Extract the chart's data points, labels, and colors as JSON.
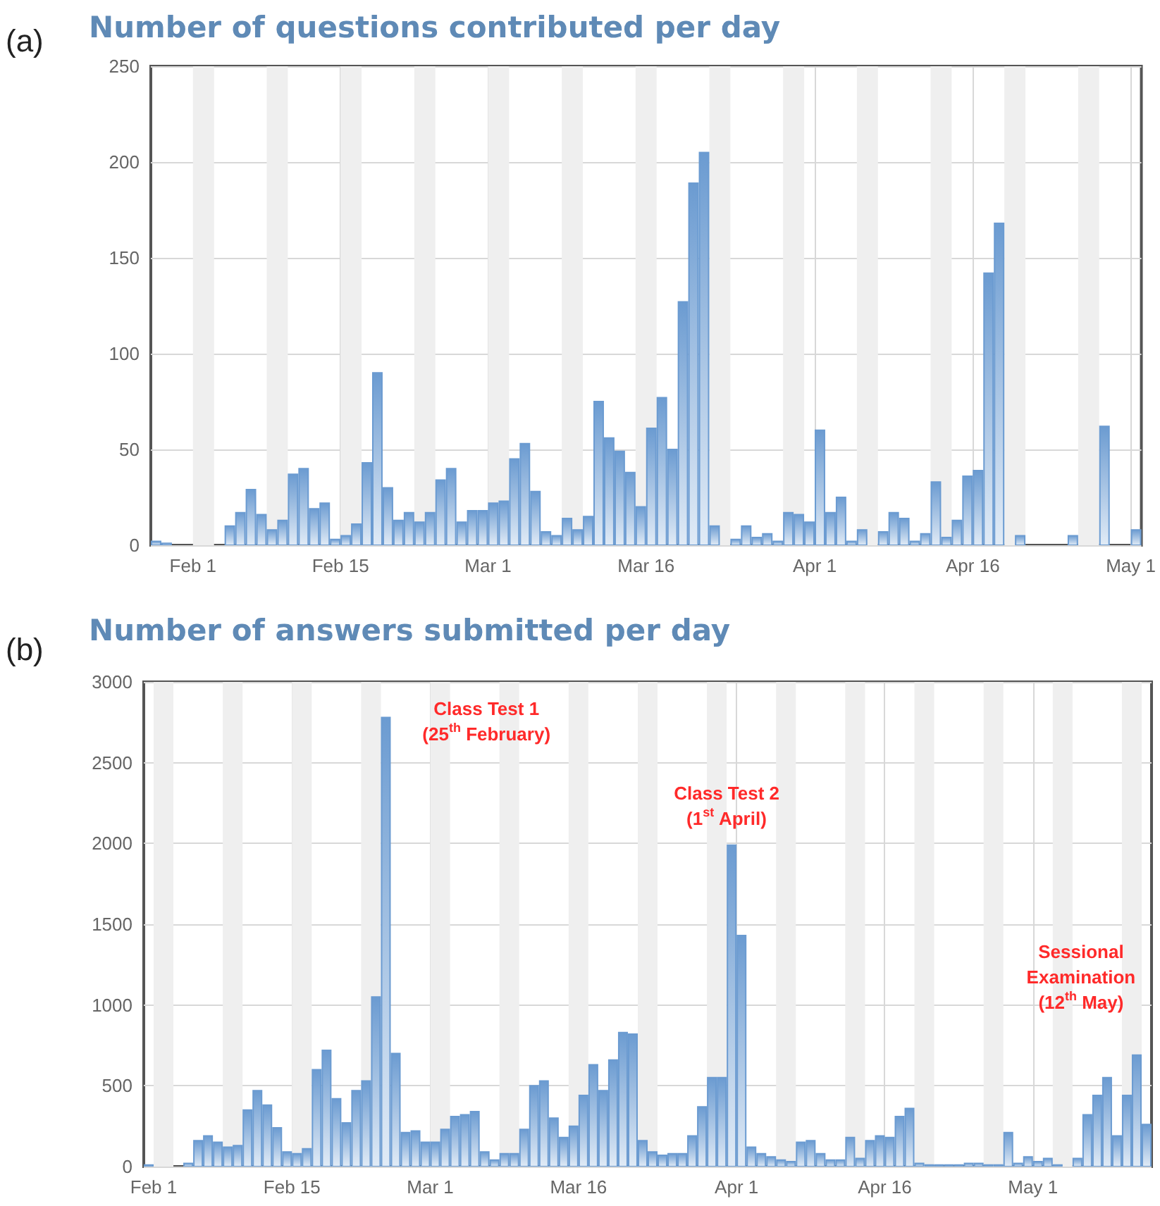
{
  "chart_data": [
    {
      "type": "bar",
      "title": "Number of questions contributed per day",
      "color": "#6b9bd1",
      "x": [
        "--01-28",
        "--01-29",
        "--02-04",
        "--02-05",
        "--02-06",
        "--02-07",
        "--02-08",
        "--02-09",
        "--02-10",
        "--02-11",
        "--02-12",
        "--02-13",
        "--02-14",
        "--02-15",
        "--02-16",
        "--02-17",
        "--02-18",
        "--02-19",
        "--02-20",
        "--02-21",
        "--02-22",
        "--02-23",
        "--02-24",
        "--02-25",
        "--02-26",
        "--02-27",
        "--02-28",
        "--03-01",
        "--03-02",
        "--03-03",
        "--03-04",
        "--03-05",
        "--03-06",
        "--03-07",
        "--03-08",
        "--03-09",
        "--03-10",
        "--03-11",
        "--03-12",
        "--03-13",
        "--03-14",
        "--03-15",
        "--03-16",
        "--03-17",
        "--03-18",
        "--03-19",
        "--03-20",
        "--03-21",
        "--03-22",
        "--03-24",
        "--03-25",
        "--03-26",
        "--03-27",
        "--03-28",
        "--03-29",
        "--03-30",
        "--03-31",
        "--04-01",
        "--04-02",
        "--04-03",
        "--04-04",
        "--04-05",
        "--04-07",
        "--04-08",
        "--04-09",
        "--04-10",
        "--04-11",
        "--04-12",
        "--04-13",
        "--04-14",
        "--04-15",
        "--04-16",
        "--04-17",
        "--04-18",
        "--04-20",
        "--04-25",
        "--04-28",
        "--05-01"
      ],
      "values": [
        2,
        1,
        10,
        17,
        29,
        16,
        8,
        13,
        37,
        40,
        19,
        22,
        3,
        5,
        11,
        43,
        90,
        30,
        13,
        17,
        12,
        17,
        34,
        40,
        12,
        18,
        18,
        22,
        23,
        45,
        53,
        28,
        7,
        5,
        14,
        8,
        15,
        75,
        56,
        49,
        38,
        20,
        61,
        77,
        50,
        127,
        189,
        205,
        10,
        3,
        10,
        4,
        6,
        2,
        17,
        16,
        12,
        60,
        17,
        25,
        2,
        8,
        7,
        17,
        14,
        2,
        6,
        33,
        4,
        13,
        36,
        39,
        142,
        168,
        5,
        5,
        62,
        8
      ],
      "xlim": [
        "--01-28",
        "--05-02"
      ],
      "ylim": [
        0,
        250
      ],
      "xticks": [
        {
          "value": "--02-01",
          "label": "Feb 1"
        },
        {
          "value": "--02-15",
          "label": "Feb 15"
        },
        {
          "value": "--03-01",
          "label": "Mar 1"
        },
        {
          "value": "--03-16",
          "label": "Mar 16"
        },
        {
          "value": "--04-01",
          "label": "Apr 1"
        },
        {
          "value": "--04-16",
          "label": "Apr 16"
        },
        {
          "value": "--05-01",
          "label": "May 1"
        }
      ],
      "yticks": [
        0,
        50,
        100,
        150,
        200,
        250
      ],
      "grid": true,
      "bands": [
        {
          "axis": "x",
          "from": "--02-01",
          "to": "--02-03",
          "color": "#efefef"
        },
        {
          "axis": "x",
          "from": "--02-08",
          "to": "--02-10",
          "color": "#efefef"
        },
        {
          "axis": "x",
          "from": "--02-15",
          "to": "--02-17",
          "color": "#efefef"
        },
        {
          "axis": "x",
          "from": "--02-22",
          "to": "--02-24",
          "color": "#efefef"
        },
        {
          "axis": "x",
          "from": "--03-01",
          "to": "--03-03",
          "color": "#efefef"
        },
        {
          "axis": "x",
          "from": "--03-08",
          "to": "--03-10",
          "color": "#efefef"
        },
        {
          "axis": "x",
          "from": "--03-15",
          "to": "--03-17",
          "color": "#efefef"
        },
        {
          "axis": "x",
          "from": "--03-22",
          "to": "--03-24",
          "color": "#efefef"
        },
        {
          "axis": "x",
          "from": "--03-29",
          "to": "--03-31",
          "color": "#efefef"
        },
        {
          "axis": "x",
          "from": "--04-05",
          "to": "--04-07",
          "color": "#efefef"
        },
        {
          "axis": "x",
          "from": "--04-12",
          "to": "--04-14",
          "color": "#efefef"
        },
        {
          "axis": "x",
          "from": "--04-19",
          "to": "--04-21",
          "color": "#efefef"
        },
        {
          "axis": "x",
          "from": "--04-26",
          "to": "--04-28",
          "color": "#efefef"
        }
      ],
      "annotations": [
        "(a)"
      ]
    },
    {
      "type": "bar",
      "title": "Number of answers submitted per day",
      "color": "#6b9bd1",
      "x": [
        "--01-31",
        "--02-04",
        "--02-05",
        "--02-06",
        "--02-07",
        "--02-08",
        "--02-09",
        "--02-10",
        "--02-11",
        "--02-12",
        "--02-13",
        "--02-14",
        "--02-15",
        "--02-16",
        "--02-17",
        "--02-18",
        "--02-19",
        "--02-20",
        "--02-21",
        "--02-22",
        "--02-23",
        "--02-24",
        "--02-25",
        "--02-26",
        "--02-27",
        "--02-28",
        "--03-01",
        "--03-02",
        "--03-03",
        "--03-04",
        "--03-05",
        "--03-06",
        "--03-07",
        "--03-08",
        "--03-09",
        "--03-10",
        "--03-11",
        "--03-12",
        "--03-13",
        "--03-14",
        "--03-15",
        "--03-16",
        "--03-17",
        "--03-18",
        "--03-19",
        "--03-20",
        "--03-21",
        "--03-22",
        "--03-23",
        "--03-24",
        "--03-25",
        "--03-26",
        "--03-27",
        "--03-28",
        "--03-29",
        "--03-30",
        "--03-31",
        "--04-01",
        "--04-02",
        "--04-03",
        "--04-04",
        "--04-05",
        "--04-06",
        "--04-07",
        "--04-08",
        "--04-09",
        "--04-10",
        "--04-11",
        "--04-12",
        "--04-13",
        "--04-14",
        "--04-15",
        "--04-16",
        "--04-17",
        "--04-18",
        "--04-19",
        "--04-20",
        "--04-21",
        "--04-22",
        "--04-23",
        "--04-24",
        "--04-25",
        "--04-26",
        "--04-27",
        "--04-28",
        "--04-29",
        "--04-30",
        "--05-01",
        "--05-02",
        "--05-03",
        "--05-05",
        "--05-06",
        "--05-07",
        "--05-08",
        "--05-09",
        "--05-10",
        "--05-11",
        "--05-12"
      ],
      "values": [
        10,
        20,
        160,
        190,
        150,
        120,
        130,
        350,
        470,
        380,
        240,
        90,
        80,
        110,
        600,
        720,
        420,
        270,
        470,
        530,
        1050,
        2780,
        700,
        210,
        220,
        150,
        150,
        230,
        310,
        320,
        340,
        90,
        40,
        80,
        80,
        230,
        500,
        530,
        300,
        180,
        250,
        440,
        630,
        470,
        660,
        830,
        820,
        160,
        90,
        70,
        80,
        80,
        190,
        370,
        550,
        550,
        1990,
        1430,
        120,
        80,
        60,
        40,
        30,
        150,
        160,
        80,
        40,
        40,
        180,
        50,
        160,
        190,
        180,
        310,
        360,
        20,
        10,
        10,
        10,
        10,
        20,
        20,
        10,
        10,
        210,
        20,
        60,
        30,
        50,
        10,
        50,
        320,
        440,
        550,
        190,
        440,
        690,
        260
      ],
      "xlim": [
        "--01-31",
        "--05-13"
      ],
      "ylim": [
        0,
        3000
      ],
      "xticks": [
        {
          "value": "--02-01",
          "label": "Feb 1"
        },
        {
          "value": "--02-15",
          "label": "Feb 15"
        },
        {
          "value": "--03-01",
          "label": "Mar 1"
        },
        {
          "value": "--03-16",
          "label": "Mar 16"
        },
        {
          "value": "--04-01",
          "label": "Apr 1"
        },
        {
          "value": "--04-16",
          "label": "Apr 16"
        },
        {
          "value": "--05-01",
          "label": "May 1"
        }
      ],
      "yticks": [
        0,
        500,
        1000,
        1500,
        2000,
        2500,
        3000
      ],
      "grid": true,
      "bands": [
        {
          "axis": "x",
          "from": "--02-01",
          "to": "--02-03",
          "color": "#efefef"
        },
        {
          "axis": "x",
          "from": "--02-08",
          "to": "--02-10",
          "color": "#efefef"
        },
        {
          "axis": "x",
          "from": "--02-15",
          "to": "--02-17",
          "color": "#efefef"
        },
        {
          "axis": "x",
          "from": "--02-22",
          "to": "--02-24",
          "color": "#efefef"
        },
        {
          "axis": "x",
          "from": "--03-01",
          "to": "--03-03",
          "color": "#efefef"
        },
        {
          "axis": "x",
          "from": "--03-08",
          "to": "--03-10",
          "color": "#efefef"
        },
        {
          "axis": "x",
          "from": "--03-15",
          "to": "--03-17",
          "color": "#efefef"
        },
        {
          "axis": "x",
          "from": "--03-22",
          "to": "--03-24",
          "color": "#efefef"
        },
        {
          "axis": "x",
          "from": "--03-29",
          "to": "--03-31",
          "color": "#efefef"
        },
        {
          "axis": "x",
          "from": "--04-05",
          "to": "--04-07",
          "color": "#efefef"
        },
        {
          "axis": "x",
          "from": "--04-12",
          "to": "--04-14",
          "color": "#efefef"
        },
        {
          "axis": "x",
          "from": "--04-19",
          "to": "--04-21",
          "color": "#efefef"
        },
        {
          "axis": "x",
          "from": "--04-26",
          "to": "--04-28",
          "color": "#efefef"
        },
        {
          "axis": "x",
          "from": "--05-03",
          "to": "--05-05",
          "color": "#efefef"
        },
        {
          "axis": "x",
          "from": "--05-10",
          "to": "--05-12",
          "color": "#efefef"
        }
      ],
      "annotations": [
        "(b)",
        "Class Test 1\n(25$^{th}$ February)",
        {
          "text": "Class Test 2\n(1$^{st}$ April)",
          "x": "--03-31",
          "y": 2075
        },
        "Sessional\nExamination\n(12$^{th}$ May)"
      ]
    }
  ]
}
